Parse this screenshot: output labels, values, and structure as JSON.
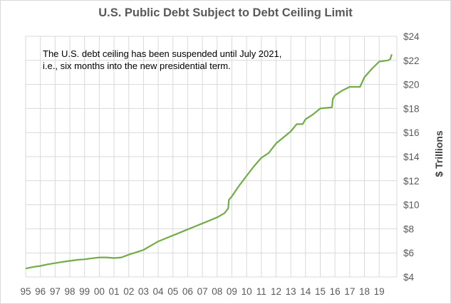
{
  "chart_data": {
    "type": "line",
    "title": "U.S. Public Debt Subject to Debt Ceiling Limit",
    "ylabel": "$ Trillions",
    "xlabel": "",
    "annotation": [
      "The U.S. debt ceiling has been suspended until July 2021,",
      "i.e., six months into the new presidential term."
    ],
    "x_tick_labels": [
      "95",
      "96",
      "97",
      "98",
      "99",
      "00",
      "01",
      "02",
      "03",
      "04",
      "05",
      "06",
      "07",
      "08",
      "09",
      "10",
      "11",
      "12",
      "13",
      "14",
      "15",
      "16",
      "17",
      "18",
      "19"
    ],
    "y_tick_labels": [
      "$4",
      "$6",
      "$8",
      "$10",
      "$12",
      "$14",
      "$16",
      "$18",
      "$20",
      "$22",
      "$24"
    ],
    "xlim": [
      1995,
      2020.2
    ],
    "ylim": [
      4,
      24
    ],
    "y_ticks": [
      4,
      6,
      8,
      10,
      12,
      14,
      16,
      18,
      20,
      22,
      24
    ],
    "grid": true,
    "line_color": "#70ad47",
    "series": [
      {
        "name": "",
        "points": [
          [
            1995.0,
            4.7
          ],
          [
            1995.5,
            4.82
          ],
          [
            1996.0,
            4.92
          ],
          [
            1996.5,
            5.05
          ],
          [
            1997.0,
            5.15
          ],
          [
            1997.5,
            5.25
          ],
          [
            1998.0,
            5.33
          ],
          [
            1998.5,
            5.42
          ],
          [
            1999.0,
            5.47
          ],
          [
            1999.5,
            5.55
          ],
          [
            2000.0,
            5.62
          ],
          [
            2000.5,
            5.62
          ],
          [
            2001.0,
            5.57
          ],
          [
            2001.5,
            5.62
          ],
          [
            2002.0,
            5.85
          ],
          [
            2002.5,
            6.05
          ],
          [
            2003.0,
            6.25
          ],
          [
            2003.5,
            6.6
          ],
          [
            2004.0,
            6.95
          ],
          [
            2004.5,
            7.2
          ],
          [
            2005.0,
            7.45
          ],
          [
            2005.5,
            7.7
          ],
          [
            2006.0,
            7.95
          ],
          [
            2006.5,
            8.2
          ],
          [
            2007.0,
            8.45
          ],
          [
            2007.5,
            8.7
          ],
          [
            2008.0,
            8.95
          ],
          [
            2008.5,
            9.3
          ],
          [
            2008.75,
            9.7
          ],
          [
            2008.8,
            10.4
          ],
          [
            2009.0,
            10.7
          ],
          [
            2009.5,
            11.6
          ],
          [
            2010.0,
            12.4
          ],
          [
            2010.5,
            13.2
          ],
          [
            2011.0,
            13.9
          ],
          [
            2011.5,
            14.3
          ],
          [
            2012.0,
            15.1
          ],
          [
            2012.5,
            15.6
          ],
          [
            2013.0,
            16.1
          ],
          [
            2013.4,
            16.7
          ],
          [
            2013.8,
            16.7
          ],
          [
            2014.0,
            17.1
          ],
          [
            2014.5,
            17.5
          ],
          [
            2015.0,
            18.0
          ],
          [
            2015.8,
            18.1
          ],
          [
            2015.85,
            18.8
          ],
          [
            2016.0,
            19.1
          ],
          [
            2016.5,
            19.5
          ],
          [
            2017.0,
            19.8
          ],
          [
            2017.7,
            19.8
          ],
          [
            2018.0,
            20.6
          ],
          [
            2018.5,
            21.3
          ],
          [
            2019.0,
            21.9
          ],
          [
            2019.6,
            22.0
          ],
          [
            2019.75,
            22.1
          ],
          [
            2019.85,
            22.5
          ]
        ]
      }
    ]
  }
}
